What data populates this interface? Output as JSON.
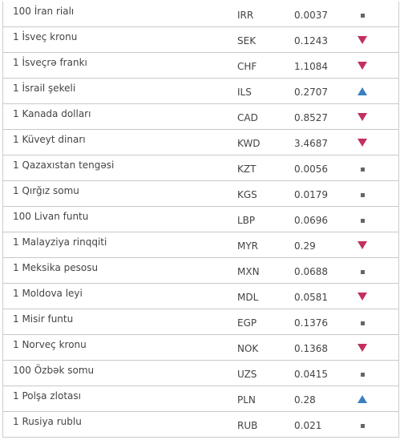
{
  "table": {
    "rows": [
      {
        "name": "100 İran rialı",
        "code": "IRR",
        "rate": "0.0037",
        "trend": "same"
      },
      {
        "name": "1 İsveç kronu",
        "code": "SEK",
        "rate": "0.1243",
        "trend": "down"
      },
      {
        "name": "1 İsveçrə frankı",
        "code": "CHF",
        "rate": "1.1084",
        "trend": "down"
      },
      {
        "name": "1 İsrail şekeli",
        "code": "ILS",
        "rate": "0.2707",
        "trend": "up"
      },
      {
        "name": "1 Kanada dolları",
        "code": "CAD",
        "rate": "0.8527",
        "trend": "down"
      },
      {
        "name": "1 Küveyt dinarı",
        "code": "KWD",
        "rate": "3.4687",
        "trend": "down"
      },
      {
        "name": "1 Qazaxıstan tengəsi",
        "code": "KZT",
        "rate": "0.0056",
        "trend": "same"
      },
      {
        "name": "1 Qırğız somu",
        "code": "KGS",
        "rate": "0.0179",
        "trend": "same"
      },
      {
        "name": "100 Livan funtu",
        "code": "LBP",
        "rate": "0.0696",
        "trend": "same"
      },
      {
        "name": "1 Malayziya rinqqiti",
        "code": "MYR",
        "rate": "0.29",
        "trend": "down"
      },
      {
        "name": "1 Meksika pesosu",
        "code": "MXN",
        "rate": "0.0688",
        "trend": "same"
      },
      {
        "name": "1 Moldova leyi",
        "code": "MDL",
        "rate": "0.0581",
        "trend": "down"
      },
      {
        "name": "1 Misir funtu",
        "code": "EGP",
        "rate": "0.1376",
        "trend": "same"
      },
      {
        "name": "1 Norveç kronu",
        "code": "NOK",
        "rate": "0.1368",
        "trend": "down"
      },
      {
        "name": "100 Özbək somu",
        "code": "UZS",
        "rate": "0.0415",
        "trend": "same"
      },
      {
        "name": "1 Polşa zlotası",
        "code": "PLN",
        "rate": "0.28",
        "trend": "up"
      },
      {
        "name": "1 Rusiya rublu",
        "code": "RUB",
        "rate": "0.021",
        "trend": "same"
      }
    ]
  }
}
